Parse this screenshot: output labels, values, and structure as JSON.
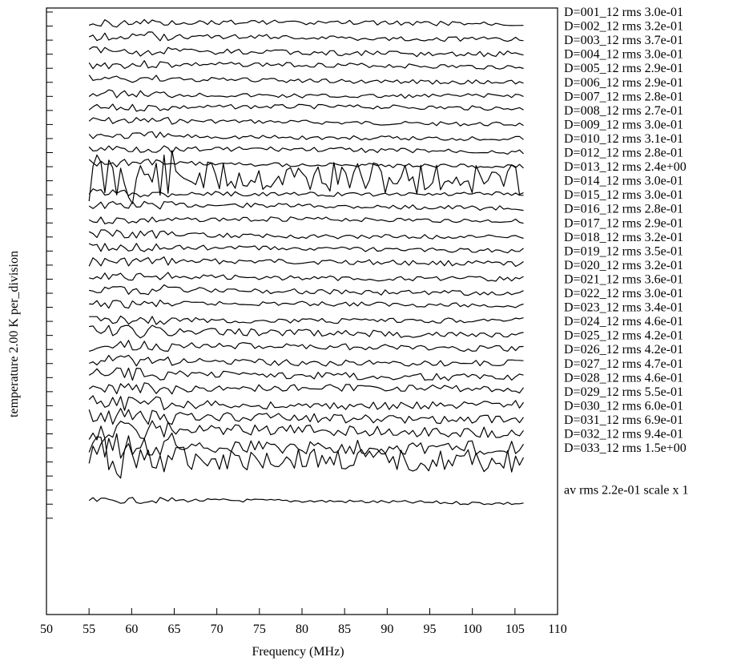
{
  "chart_data": {
    "type": "line",
    "title": "",
    "xlabel": "Frequency (MHz)",
    "ylabel": "temperature   2.00 K  per_division",
    "xlim": [
      50,
      110
    ],
    "x_ticks": [
      50,
      55,
      60,
      65,
      70,
      75,
      80,
      85,
      90,
      95,
      100,
      105,
      110
    ],
    "x_range_data": [
      55,
      106
    ],
    "y_units_per_division": 2.0,
    "y_unit": "K",
    "divisions": 37,
    "grid": false,
    "legend": "labels at right of each trace",
    "line_color": "#000000",
    "series": [
      {
        "label": "D=001_12 rms 3.0e-01",
        "baseline_div": 0,
        "rms": 0.3,
        "phase": 0.3
      },
      {
        "label": "D=002_12 rms 3.2e-01",
        "baseline_div": 1,
        "rms": 0.32,
        "phase": 1.1
      },
      {
        "label": "D=003_12 rms 3.7e-01",
        "baseline_div": 2,
        "rms": 0.37,
        "phase": 2.0
      },
      {
        "label": "D=004_12 rms 3.0e-01",
        "baseline_div": 3,
        "rms": 0.3,
        "phase": 0.7
      },
      {
        "label": "D=005_12 rms 2.9e-01",
        "baseline_div": 4,
        "rms": 0.29,
        "phase": 1.9
      },
      {
        "label": "D=006_12 rms 2.9e-01",
        "baseline_div": 5,
        "rms": 0.29,
        "phase": 2.6
      },
      {
        "label": "D=007_12 rms 2.8e-01",
        "baseline_div": 6,
        "rms": 0.28,
        "phase": 0.1
      },
      {
        "label": "D=008_12 rms 2.7e-01",
        "baseline_div": 7,
        "rms": 0.27,
        "phase": 1.4
      },
      {
        "label": "D=009_12 rms 3.0e-01",
        "baseline_div": 8,
        "rms": 0.3,
        "phase": 2.2
      },
      {
        "label": "D=010_12 rms 3.1e-01",
        "baseline_div": 9,
        "rms": 0.31,
        "phase": 0.9
      },
      {
        "label": "D=012_12 rms 2.8e-01",
        "baseline_div": 10,
        "rms": 0.28,
        "phase": 1.6
      },
      {
        "label": "D=013_12 rms 2.4e+00",
        "baseline_div": 11,
        "rms": 2.4,
        "phase": 0.5
      },
      {
        "label": "D=014_12 rms 3.0e-01",
        "baseline_div": 12,
        "rms": 0.3,
        "phase": 2.8
      },
      {
        "label": "D=015_12 rms 3.0e-01",
        "baseline_div": 13,
        "rms": 0.3,
        "phase": 1.0
      },
      {
        "label": "D=016_12 rms 2.8e-01",
        "baseline_div": 14,
        "rms": 0.28,
        "phase": 0.2
      },
      {
        "label": "D=017_12 rms 2.9e-01",
        "baseline_div": 15,
        "rms": 0.29,
        "phase": 2.4
      },
      {
        "label": "D=018_12 rms 3.2e-01",
        "baseline_div": 16,
        "rms": 0.32,
        "phase": 1.3
      },
      {
        "label": "D=019_12 rms 3.5e-01",
        "baseline_div": 17,
        "rms": 0.35,
        "phase": 0.6
      },
      {
        "label": "D=020_12 rms 3.2e-01",
        "baseline_div": 18,
        "rms": 0.32,
        "phase": 2.1
      },
      {
        "label": "D=021_12 rms 3.6e-01",
        "baseline_div": 19,
        "rms": 0.36,
        "phase": 1.7
      },
      {
        "label": "D=022_12 rms 3.0e-01",
        "baseline_div": 20,
        "rms": 0.3,
        "phase": 0.4
      },
      {
        "label": "D=023_12 rms 3.4e-01",
        "baseline_div": 21,
        "rms": 0.34,
        "phase": 2.9
      },
      {
        "label": "D=024_12 rms 4.6e-01",
        "baseline_div": 22,
        "rms": 0.46,
        "phase": 1.2
      },
      {
        "label": "D=025_12 rms 4.2e-01",
        "baseline_div": 23,
        "rms": 0.42,
        "phase": 0.8
      },
      {
        "label": "D=026_12 rms 4.2e-01",
        "baseline_div": 24,
        "rms": 0.42,
        "phase": 2.3
      },
      {
        "label": "D=027_12 rms 4.7e-01",
        "baseline_div": 25,
        "rms": 0.47,
        "phase": 1.5
      },
      {
        "label": "D=028_12 rms 4.6e-01",
        "baseline_div": 26,
        "rms": 0.46,
        "phase": 0.0
      },
      {
        "label": "D=029_12 rms 5.5e-01",
        "baseline_div": 27,
        "rms": 0.55,
        "phase": 2.7
      },
      {
        "label": "D=030_12 rms 6.0e-01",
        "baseline_div": 28,
        "rms": 0.6,
        "phase": 1.8
      },
      {
        "label": "D=031_12 rms 6.9e-01",
        "baseline_div": 29,
        "rms": 0.69,
        "phase": 0.6
      },
      {
        "label": "D=032_12 rms 9.4e-01",
        "baseline_div": 30,
        "rms": 0.94,
        "phase": 2.5
      },
      {
        "label": "D=033_12 rms 1.5e+00",
        "baseline_div": 31,
        "rms": 1.5,
        "phase": 1.2
      },
      {
        "label": "av  rms 2.2e-01 scale x 1",
        "baseline_div": 34,
        "rms": 0.22,
        "phase": 0.9
      }
    ]
  }
}
